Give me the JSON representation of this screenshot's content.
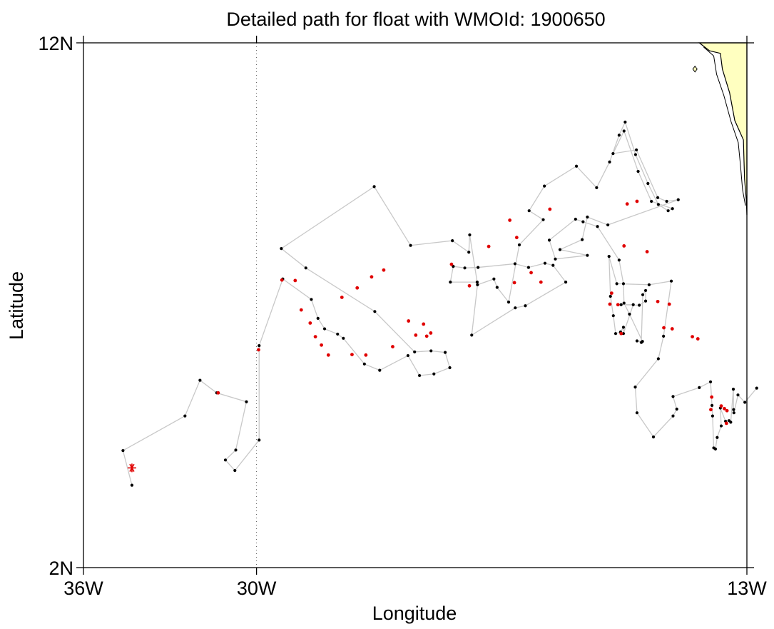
{
  "title": "Detailed path for float with WMOId: 1900650",
  "xlabel": "Longitude",
  "ylabel": "Latitude",
  "x_ticks": [
    {
      "value": -36,
      "label": "36W"
    },
    {
      "value": -30,
      "label": "30W"
    },
    {
      "value": -13,
      "label": "13W"
    }
  ],
  "y_ticks": [
    {
      "value": 12,
      "label": "12N"
    },
    {
      "value": 2,
      "label": "2N"
    }
  ],
  "colors": {
    "land": "#ffffc0",
    "coast": "#000000",
    "track": "#c8c8c8",
    "profile": "#000000",
    "highlight": "#e00000",
    "grid": "#555555"
  },
  "chart_data": {
    "type": "scatter",
    "title": "Detailed path for float with WMOId: 1900650",
    "xlabel": "Longitude",
    "ylabel": "Latitude",
    "xlim": [
      -36,
      -13
    ],
    "ylim": [
      2,
      12
    ],
    "gridlines_lon": [
      -30
    ],
    "deploy_marker": {
      "symbol": "asterisk",
      "lon": -34.32,
      "lat": 3.9
    },
    "track": [
      [
        -34.32,
        3.57
      ],
      [
        -34.63,
        4.23
      ],
      [
        -32.48,
        4.89
      ],
      [
        -31.96,
        5.57
      ],
      [
        -31.38,
        5.33
      ],
      [
        -30.35,
        5.16
      ],
      [
        -30.72,
        4.24
      ],
      [
        -31.08,
        4.05
      ],
      [
        -30.75,
        3.85
      ],
      [
        -29.91,
        4.43
      ],
      [
        -29.91,
        6.23
      ],
      [
        -29.09,
        7.5
      ],
      [
        -28.1,
        7.11
      ],
      [
        -27.87,
        6.75
      ],
      [
        -27.64,
        6.55
      ],
      [
        -27.19,
        6.45
      ],
      [
        -26.99,
        6.37
      ],
      [
        -26.26,
        5.88
      ],
      [
        -25.73,
        5.76
      ],
      [
        -24.75,
        6.04
      ],
      [
        -24.35,
        5.66
      ],
      [
        -23.85,
        5.69
      ],
      [
        -23.3,
        5.81
      ],
      [
        -23.46,
        6.1
      ],
      [
        -23.95,
        6.13
      ],
      [
        -24.52,
        6.11
      ],
      [
        -25.9,
        6.88
      ],
      [
        -28.29,
        7.71
      ],
      [
        -29.14,
        8.08
      ],
      [
        -25.92,
        9.26
      ],
      [
        -24.66,
        8.14
      ],
      [
        -23.21,
        8.23
      ],
      [
        -22.64,
        8.01
      ],
      [
        -22.61,
        8.34
      ],
      [
        -22.35,
        7.44
      ],
      [
        -23.28,
        7.44
      ],
      [
        -23.18,
        7.74
      ],
      [
        -22.78,
        7.71
      ],
      [
        -22.32,
        7.72
      ],
      [
        -21.04,
        7.79
      ],
      [
        -20.57,
        7.72
      ],
      [
        -20.0,
        7.8
      ],
      [
        -19.72,
        7.76
      ],
      [
        -19.28,
        7.44
      ],
      [
        -20.68,
        6.99
      ],
      [
        -21.03,
        6.95
      ],
      [
        -22.54,
        6.43
      ],
      [
        -22.34,
        7.39
      ],
      [
        -21.77,
        7.5
      ],
      [
        -21.66,
        7.34
      ],
      [
        -21.26,
        7.06
      ],
      [
        -20.89,
        8.15
      ],
      [
        -20.06,
        8.63
      ],
      [
        -20.55,
        8.8
      ],
      [
        -20.02,
        9.27
      ],
      [
        -18.91,
        9.65
      ],
      [
        -18.21,
        9.24
      ],
      [
        -17.76,
        9.73
      ],
      [
        -17.43,
        10.24
      ],
      [
        -17.22,
        10.49
      ],
      [
        -16.86,
        9.87
      ],
      [
        -16.43,
        9.32
      ],
      [
        -16.07,
        8.92
      ],
      [
        -15.73,
        8.8
      ],
      [
        -15.58,
        8.84
      ],
      [
        -16.31,
        8.98
      ],
      [
        -16.77,
        9.55
      ],
      [
        -17.26,
        10.32
      ],
      [
        -17.64,
        9.89
      ],
      [
        -16.83,
        9.96
      ],
      [
        -16.09,
        9.05
      ],
      [
        -15.78,
        8.98
      ],
      [
        -15.38,
        9.01
      ],
      [
        -17.82,
        8.53
      ],
      [
        -18.53,
        8.68
      ],
      [
        -18.71,
        8.25
      ],
      [
        -19.48,
        8.06
      ],
      [
        -18.53,
        7.95
      ],
      [
        -19.64,
        7.88
      ],
      [
        -19.85,
        8.24
      ],
      [
        -18.94,
        8.64
      ],
      [
        -18.68,
        8.59
      ],
      [
        -18.18,
        8.5
      ],
      [
        -17.43,
        7.86
      ],
      [
        -17.28,
        7.41
      ],
      [
        -17.26,
        7.04
      ],
      [
        -17.07,
        6.83
      ],
      [
        -16.62,
        6.31
      ],
      [
        -16.81,
        6.32
      ],
      [
        -16.66,
        6.29
      ],
      [
        -16.61,
        7.2
      ],
      [
        -16.51,
        7.28
      ],
      [
        -16.51,
        7.08
      ],
      [
        -16.73,
        7.0
      ],
      [
        -17.36,
        7.01
      ],
      [
        -16.94,
        7.01
      ],
      [
        -17.28,
        6.46
      ],
      [
        -17.28,
        6.58
      ],
      [
        -17.38,
        6.49
      ],
      [
        -17.55,
        6.46
      ],
      [
        -17.63,
        6.8
      ],
      [
        -17.73,
        7.17
      ],
      [
        -17.78,
        7.93
      ],
      [
        -17.51,
        7.41
      ],
      [
        -16.39,
        7.39
      ],
      [
        -15.62,
        7.46
      ],
      [
        -15.89,
        6.41
      ],
      [
        -16.07,
        5.98
      ],
      [
        -16.87,
        5.44
      ],
      [
        -16.81,
        4.95
      ],
      [
        -16.24,
        4.49
      ],
      [
        -15.56,
        4.89
      ],
      [
        -15.43,
        5.02
      ],
      [
        -15.56,
        5.26
      ],
      [
        -14.65,
        5.43
      ],
      [
        -14.26,
        5.54
      ],
      [
        -14.21,
        5.09
      ],
      [
        -14.19,
        4.89
      ],
      [
        -14.15,
        4.28
      ],
      [
        -14.09,
        4.26
      ],
      [
        -14.03,
        4.48
      ],
      [
        -13.89,
        4.7
      ],
      [
        -13.92,
        5.04
      ],
      [
        -13.74,
        4.79
      ],
      [
        -13.62,
        4.8
      ],
      [
        -13.56,
        4.77
      ],
      [
        -13.47,
        5.4
      ],
      [
        -13.46,
        5.01
      ],
      [
        -13.45,
        4.95
      ],
      [
        -13.31,
        5.29
      ],
      [
        -13.07,
        5.15
      ],
      [
        -12.66,
        5.42
      ]
    ],
    "highlight_points": [
      [
        -31.33,
        5.33
      ],
      [
        -29.93,
        6.15
      ],
      [
        -29.12,
        7.48
      ],
      [
        -28.66,
        7.47
      ],
      [
        -28.45,
        6.91
      ],
      [
        -28.14,
        6.66
      ],
      [
        -27.96,
        6.4
      ],
      [
        -27.75,
        6.24
      ],
      [
        -27.51,
        6.05
      ],
      [
        -26.69,
        6.06
      ],
      [
        -26.21,
        6.05
      ],
      [
        -25.28,
        6.21
      ],
      [
        -24.48,
        6.43
      ],
      [
        -24.1,
        6.41
      ],
      [
        -23.96,
        6.47
      ],
      [
        -24.21,
        6.64
      ],
      [
        -24.73,
        6.7
      ],
      [
        -27.04,
        7.15
      ],
      [
        -26.51,
        7.33
      ],
      [
        -26.01,
        7.54
      ],
      [
        -25.59,
        7.67
      ],
      [
        -23.24,
        7.78
      ],
      [
        -22.62,
        7.37
      ],
      [
        -21.95,
        8.12
      ],
      [
        -21.22,
        8.62
      ],
      [
        -20.98,
        8.29
      ],
      [
        -20.48,
        7.62
      ],
      [
        -20.14,
        7.44
      ],
      [
        -21.06,
        7.43
      ],
      [
        -19.83,
        8.83
      ],
      [
        -17.15,
        8.93
      ],
      [
        -16.81,
        8.98
      ],
      [
        -17.69,
        7.23
      ],
      [
        -17.47,
        7.01
      ],
      [
        -17.36,
        6.46
      ],
      [
        -17.75,
        7.02
      ],
      [
        -15.69,
        7.02
      ],
      [
        -14.89,
        6.4
      ],
      [
        -14.7,
        6.36
      ],
      [
        -14.22,
        5.25
      ],
      [
        -14.25,
        5.01
      ],
      [
        -13.71,
        4.75
      ],
      [
        -13.78,
        5.03
      ],
      [
        -13.69,
        4.99
      ],
      [
        -13.89,
        5.08
      ],
      [
        -16.46,
        8.02
      ],
      [
        -17.26,
        8.13
      ],
      [
        -16.09,
        7.07
      ],
      [
        -15.88,
        6.57
      ],
      [
        -15.59,
        6.55
      ]
    ]
  },
  "land": {
    "name": "West Africa coast",
    "outline": [
      [
        -14.65,
        12.0
      ],
      [
        -14.3,
        11.85
      ],
      [
        -13.92,
        11.8
      ],
      [
        -13.85,
        11.5
      ],
      [
        -13.6,
        11.05
      ],
      [
        -13.42,
        10.52
      ],
      [
        -13.12,
        10.15
      ],
      [
        -13.1,
        9.75
      ],
      [
        -13.08,
        9.4
      ],
      [
        -13.02,
        9.0
      ],
      [
        -13.0,
        8.72
      ],
      [
        -13.0,
        12.0
      ]
    ],
    "coastline2": [
      [
        -14.5,
        11.92
      ],
      [
        -14.15,
        11.75
      ],
      [
        -14.05,
        11.4
      ],
      [
        -13.8,
        11.0
      ],
      [
        -13.55,
        10.5
      ],
      [
        -13.3,
        10.1
      ],
      [
        -13.22,
        9.65
      ],
      [
        -13.15,
        9.2
      ],
      [
        -13.05,
        8.9
      ]
    ],
    "islet": [
      [
        -14.8,
        11.5
      ]
    ]
  }
}
